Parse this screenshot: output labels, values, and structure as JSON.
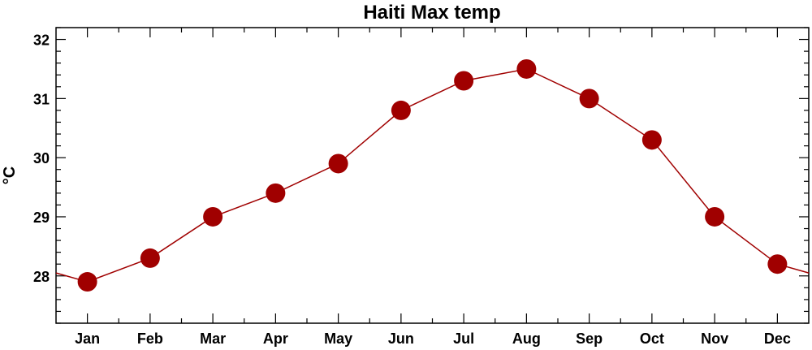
{
  "chart_data": {
    "type": "line",
    "title": "Haiti Max temp",
    "ylabel": "°C",
    "xlabel": "",
    "categories": [
      "Jan",
      "Feb",
      "Mar",
      "Apr",
      "May",
      "Jun",
      "Jul",
      "Aug",
      "Sep",
      "Oct",
      "Nov",
      "Dec"
    ],
    "series": [
      {
        "values": [
          27.9,
          28.3,
          29.0,
          29.4,
          29.9,
          30.8,
          31.3,
          31.5,
          31.0,
          30.3,
          29.0,
          28.2
        ]
      }
    ],
    "ylim": [
      27.2,
      32.2
    ],
    "yticks": [
      28,
      29,
      30,
      31,
      32
    ],
    "grid": false,
    "wrap_around": true,
    "colors": {
      "series": "#a00000",
      "axis": "#000000"
    }
  }
}
